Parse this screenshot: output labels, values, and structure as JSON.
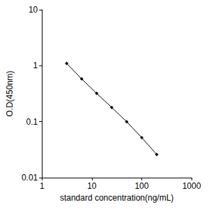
{
  "chart_data": {
    "type": "line",
    "x_label": "standard concentration(ng/mL)",
    "y_label": "O.D(450nm)",
    "x": [
      3.125,
      6.25,
      12.5,
      25,
      50,
      100,
      200
    ],
    "values": [
      1.1,
      0.58,
      0.32,
      0.18,
      0.1,
      0.052,
      0.026
    ],
    "color": "#000000",
    "marker": "diamond",
    "log": true,
    "grid": false,
    "xlim": [
      1,
      1000
    ],
    "xticks": [
      1,
      10,
      100,
      1000
    ],
    "ylim": [
      0.01,
      10
    ],
    "yticks": [
      0.01,
      0.1,
      1,
      10
    ]
  }
}
